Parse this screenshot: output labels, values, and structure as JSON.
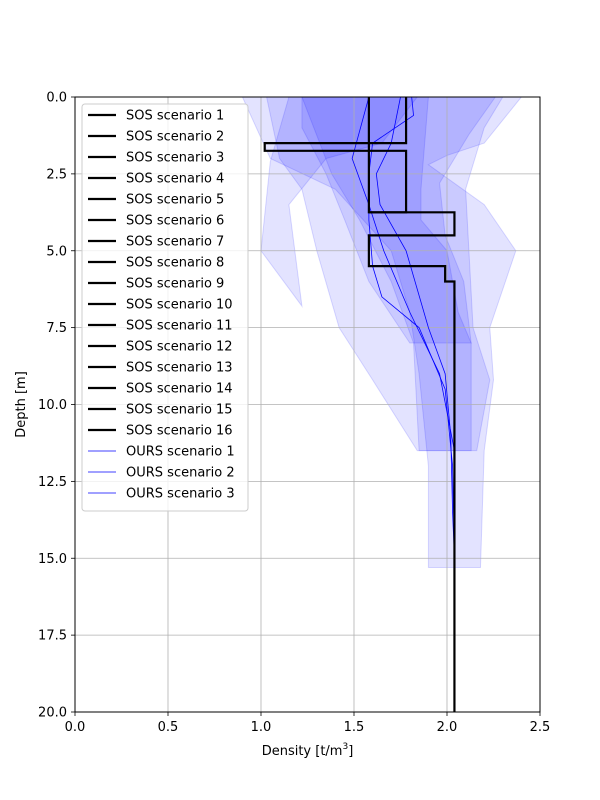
{
  "chart_data": {
    "type": "line",
    "xlabel": "Density [t/m",
    "xlabel_sup": "3",
    "xlabel_suffix": "]",
    "ylabel": "Depth [m]",
    "xlim": [
      0.0,
      2.5
    ],
    "ylim": [
      20.0,
      0.0
    ],
    "xticks": [
      "0.0",
      "0.5",
      "1.0",
      "1.5",
      "2.0",
      "2.5"
    ],
    "yticks": [
      "0.0",
      "2.5",
      "5.0",
      "7.5",
      "10.0",
      "12.5",
      "15.0",
      "17.5",
      "20.0"
    ],
    "grid": true,
    "legend_position": "upper-left",
    "colors": {
      "sos": "#000000",
      "ours": "#0000ff",
      "band": "#0000ff"
    },
    "sos_scenarios": [
      "SOS scenario 1",
      "SOS scenario 2",
      "SOS scenario 3",
      "SOS scenario 4",
      "SOS scenario 5",
      "SOS scenario 6",
      "SOS scenario 7",
      "SOS scenario 8",
      "SOS scenario 9",
      "SOS scenario 10",
      "SOS scenario 11",
      "SOS scenario 12",
      "SOS scenario 13",
      "SOS scenario 14",
      "SOS scenario 15",
      "SOS scenario 16"
    ],
    "ours_scenarios": [
      "OURS scenario 1",
      "OURS scenario 2",
      "OURS scenario 3"
    ],
    "sos_paths": [
      [
        [
          1.78,
          0.0
        ],
        [
          1.78,
          1.5
        ],
        [
          1.02,
          1.5
        ],
        [
          1.02,
          1.75
        ],
        [
          1.78,
          1.75
        ],
        [
          1.78,
          3.75
        ],
        [
          1.58,
          3.75
        ],
        [
          1.58,
          0.0
        ]
      ],
      [
        [
          1.58,
          3.75
        ],
        [
          2.04,
          3.75
        ],
        [
          2.04,
          4.5
        ],
        [
          1.58,
          4.5
        ],
        [
          1.58,
          5.5
        ],
        [
          1.99,
          5.5
        ],
        [
          1.99,
          6.0
        ],
        [
          2.04,
          6.0
        ],
        [
          2.04,
          20.0
        ]
      ]
    ],
    "ours_lines": [
      [
        [
          1.75,
          0.0
        ],
        [
          1.7,
          1.5
        ],
        [
          1.62,
          2.5
        ],
        [
          1.64,
          3.5
        ],
        [
          1.78,
          5.0
        ],
        [
          1.9,
          7.5
        ],
        [
          1.99,
          9.0
        ],
        [
          2.02,
          11.0
        ],
        [
          2.03,
          13.5
        ],
        [
          2.04,
          15.0
        ]
      ],
      [
        [
          1.58,
          0.0
        ],
        [
          1.49,
          2.0
        ],
        [
          1.58,
          3.5
        ],
        [
          1.66,
          5.0
        ],
        [
          1.8,
          7.0
        ],
        [
          1.96,
          9.0
        ],
        [
          2.04,
          11.5
        ],
        [
          2.04,
          14.5
        ]
      ],
      [
        [
          1.81,
          0.0
        ],
        [
          1.82,
          0.6
        ],
        [
          1.6,
          1.5
        ],
        [
          1.58,
          2.5
        ],
        [
          1.58,
          4.0
        ],
        [
          1.6,
          5.5
        ],
        [
          1.65,
          6.5
        ],
        [
          1.85,
          7.5
        ],
        [
          1.99,
          9.5
        ],
        [
          2.03,
          12.0
        ],
        [
          2.04,
          15.0
        ]
      ]
    ],
    "bands": [
      [
        [
          0.9,
          0.0
        ],
        [
          2.4,
          0.0
        ],
        [
          2.32,
          0.6
        ],
        [
          2.2,
          1.5
        ],
        [
          2.0,
          1.9
        ],
        [
          1.9,
          2.2
        ],
        [
          2.2,
          3.5
        ],
        [
          2.37,
          5.0
        ],
        [
          2.23,
          7.5
        ],
        [
          2.25,
          9.2
        ],
        [
          2.2,
          11.5
        ],
        [
          2.18,
          15.3
        ],
        [
          1.9,
          15.3
        ],
        [
          1.9,
          12.0
        ],
        [
          1.85,
          9.0
        ],
        [
          1.8,
          7.0
        ],
        [
          1.7,
          5.0
        ],
        [
          1.4,
          3.0
        ],
        [
          1.05,
          2.0
        ],
        [
          0.9,
          0.0
        ]
      ],
      [
        [
          1.03,
          0.0
        ],
        [
          2.3,
          0.0
        ],
        [
          2.2,
          1.0
        ],
        [
          2.1,
          3.0
        ],
        [
          2.14,
          7.5
        ],
        [
          2.23,
          9.2
        ],
        [
          2.16,
          11.5
        ],
        [
          1.84,
          11.5
        ],
        [
          1.6,
          9.2
        ],
        [
          1.42,
          7.5
        ],
        [
          1.3,
          5.0
        ],
        [
          1.22,
          3.0
        ],
        [
          1.1,
          2.0
        ],
        [
          1.03,
          0.0
        ]
      ],
      [
        [
          1.22,
          0.0
        ],
        [
          2.26,
          0.0
        ],
        [
          2.12,
          1.2
        ],
        [
          1.96,
          2.8
        ],
        [
          1.99,
          4.5
        ],
        [
          2.09,
          6.0
        ],
        [
          2.13,
          8.0
        ],
        [
          2.13,
          11.5
        ],
        [
          1.85,
          11.5
        ],
        [
          1.82,
          8.0
        ],
        [
          1.7,
          6.0
        ],
        [
          1.53,
          4.0
        ],
        [
          1.38,
          2.5
        ],
        [
          1.22,
          0.0
        ]
      ],
      [
        [
          1.22,
          0.0
        ],
        [
          1.9,
          0.0
        ],
        [
          1.88,
          1.5
        ],
        [
          1.86,
          3.0
        ],
        [
          1.86,
          4.0
        ],
        [
          2.0,
          5.0
        ],
        [
          2.06,
          7.0
        ],
        [
          2.13,
          8.0
        ],
        [
          1.8,
          8.0
        ],
        [
          1.58,
          6.0
        ],
        [
          1.45,
          4.0
        ],
        [
          1.35,
          2.5
        ],
        [
          1.22,
          1.0
        ],
        [
          1.22,
          0.0
        ]
      ],
      [
        [
          1.15,
          0.0
        ],
        [
          1.84,
          0.0
        ],
        [
          1.65,
          1.5
        ],
        [
          1.35,
          2.0
        ],
        [
          1.15,
          3.5
        ],
        [
          1.22,
          6.8
        ],
        [
          1.0,
          5.0
        ],
        [
          1.05,
          2.1
        ],
        [
          1.15,
          0.0
        ]
      ]
    ]
  }
}
